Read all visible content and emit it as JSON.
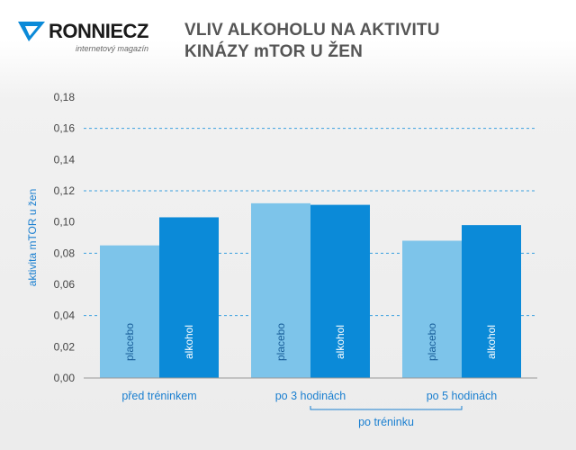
{
  "brand": {
    "name": "RONNIECZ",
    "tagline": "internetový magazín"
  },
  "colors": {
    "placebo": "#7dc4ea",
    "alkohol": "#0b8ad8",
    "axis_text": "#1a7fd0",
    "grid": "#3ba0df"
  },
  "chart_data": {
    "type": "bar",
    "title": "VLIV ALKOHOLU NA AKTIVITU KINÁZY mTOR U ŽEN",
    "title_lines": [
      "VLIV ALKOHOLU NA AKTIVITU",
      "KINÁZY mTOR U ŽEN"
    ],
    "ylabel": "aktivita mTOR u žen",
    "xlabel": "",
    "ylim": [
      0,
      0.18
    ],
    "yticks": [
      "0,00",
      "0,02",
      "0,04",
      "0,06",
      "0,08",
      "0,10",
      "0,12",
      "0,14",
      "0,16",
      "0,18"
    ],
    "gridlines_dashed_at": [
      0.04,
      0.08,
      0.12,
      0.16
    ],
    "categories": [
      "před tréninkem",
      "po 3 hodinách",
      "po 5 hodinách"
    ],
    "group_label": "po tréninku",
    "series": [
      {
        "name": "placebo",
        "values": [
          0.085,
          0.112,
          0.088
        ]
      },
      {
        "name": "alkohol",
        "values": [
          0.103,
          0.111,
          0.098
        ]
      }
    ]
  }
}
